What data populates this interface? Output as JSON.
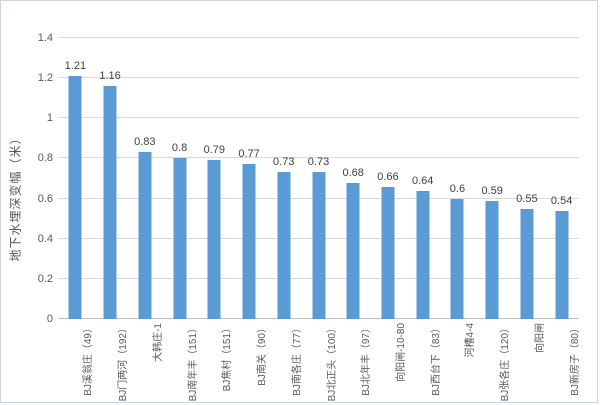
{
  "chart": {
    "y_axis_title": "地下水埋深变幅（米）",
    "colors": {
      "bar": "#5B9BD5",
      "gridline": "#D9D9D9",
      "axis_line": "#BFBFBF",
      "tick_text": "#595959",
      "value_label_text": "#404040",
      "border": "#CFD6DE",
      "background": "#FFFFFF"
    }
  },
  "chart_data": {
    "type": "bar",
    "title": "",
    "xlabel": "",
    "ylabel": "地下水埋深变幅（米）",
    "ylim": [
      0,
      1.4
    ],
    "grid": true,
    "legend": false,
    "y_ticks": [
      "0",
      "0.2",
      "0.4",
      "0.6",
      "0.8",
      "1",
      "1.2",
      "1.4"
    ],
    "categories": [
      "BJ溪翁庄（49）",
      "BJ门两河（192）",
      "大韩庄-1",
      "BJ南年丰（151）",
      "BJ焦村（151）",
      "BJ南关（90）",
      "BJ南各庄（77）",
      "BJ北正头（100）",
      "BJ北年丰（97）",
      "向阳闸-10-80",
      "BJ西台下（83）",
      "河槽4-4",
      "BJ张各庄（120）",
      "向阳闸",
      "BJ新房子（80）"
    ],
    "values": [
      1.21,
      1.16,
      0.83,
      0.8,
      0.79,
      0.77,
      0.73,
      0.73,
      0.68,
      0.66,
      0.64,
      0.6,
      0.59,
      0.55,
      0.54
    ],
    "value_labels": [
      "1.21",
      "1.16",
      "0.83",
      "0.8",
      "0.79",
      "0.77",
      "0.73",
      "0.73",
      "0.68",
      "0.66",
      "0.64",
      "0.6",
      "0.59",
      "0.55",
      "0.54"
    ]
  }
}
